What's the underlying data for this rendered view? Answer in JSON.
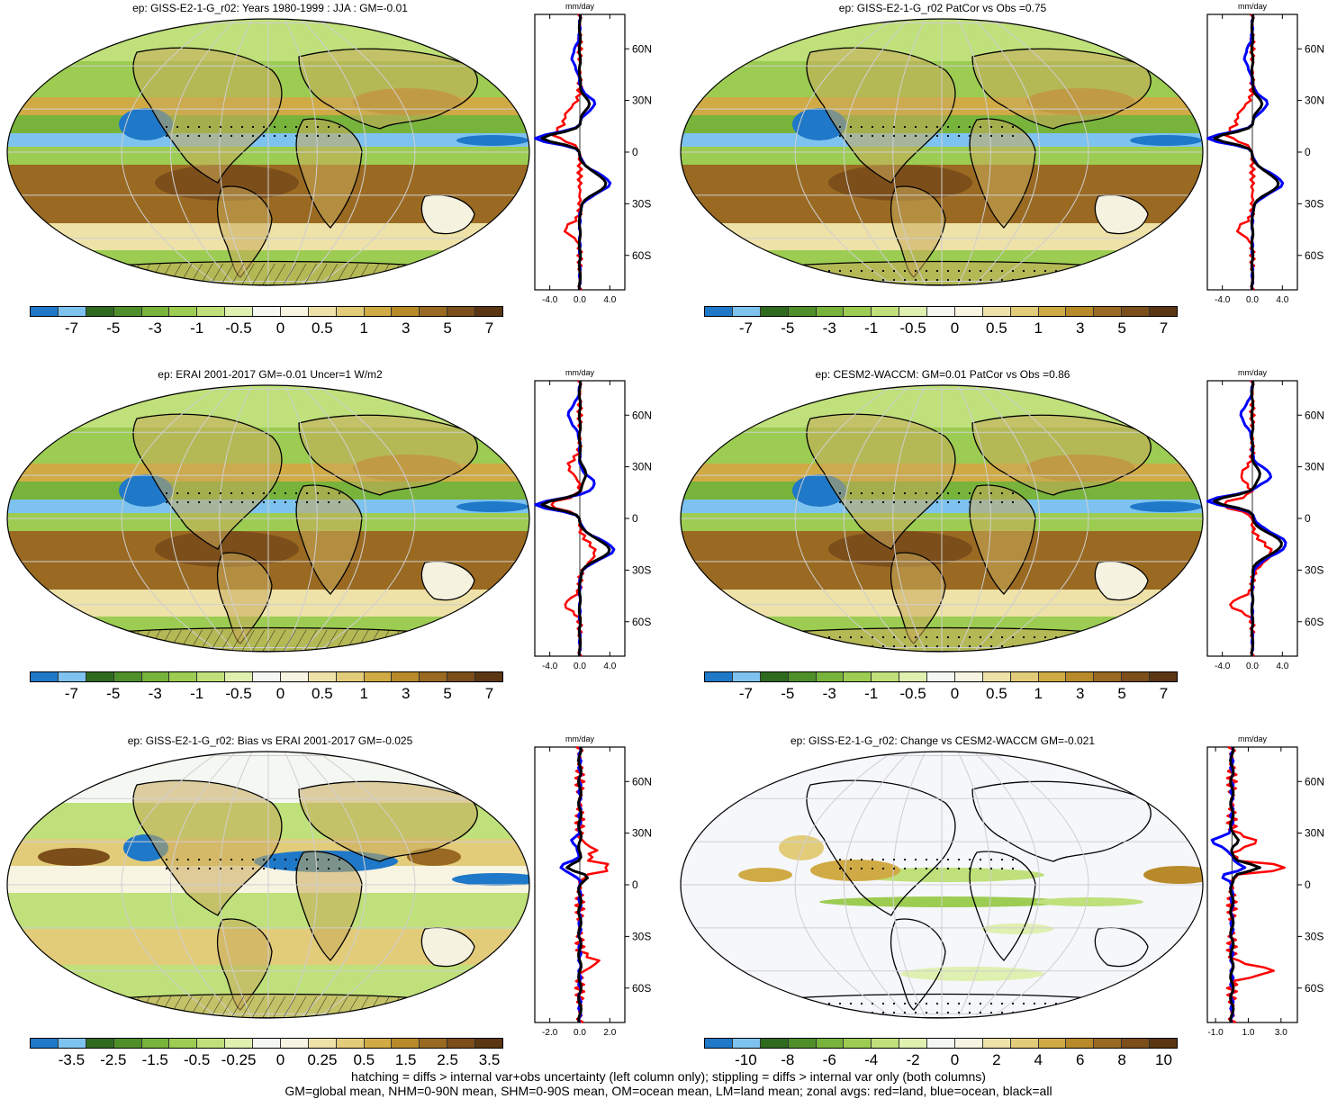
{
  "colors": {
    "scale": [
      "#1f78c8",
      "#7ec3f0",
      "#2e6b1e",
      "#4f8f2a",
      "#78b33c",
      "#9ccc52",
      "#bfe07a",
      "#dff0b0",
      "#f5f8f2",
      "#f8f4e2",
      "#eee2a8",
      "#e2cc7a",
      "#d0aa44",
      "#b88a2a",
      "#9a6a22",
      "#7c4e1a",
      "#5a3612"
    ],
    "land_curve": "#ff0000",
    "ocean_curve": "#0000ff",
    "all_curve": "#000000"
  },
  "zonal": {
    "unit": "mm/day",
    "lat_labels": [
      "60N",
      "30N",
      "0",
      "30S",
      "60S"
    ]
  },
  "panels": [
    {
      "title": "ep: GISS-E2-1-G_r02: Years 1980-1999 : JJA : GM=-0.01",
      "cbar_labels": [
        "-7",
        "-5",
        "-3",
        "-1",
        "-0.5",
        "0",
        "0.5",
        "1",
        "3",
        "5",
        "7"
      ],
      "zonal_ticks": [
        "-4.0",
        "0.0",
        "4.0"
      ],
      "map_type": "mean"
    },
    {
      "title": "ep: GISS-E2-1-G_r02 PatCor vs Obs =0.75",
      "cbar_labels": [
        "-7",
        "-5",
        "-3",
        "-1",
        "-0.5",
        "0",
        "0.5",
        "1",
        "3",
        "5",
        "7"
      ],
      "zonal_ticks": [
        "-4.0",
        "0.0",
        "4.0"
      ],
      "map_type": "mean"
    },
    {
      "title": "ep: ERAI 2001-2017 GM=-0.01 Uncer=1 W/m2",
      "cbar_labels": [
        "-7",
        "-5",
        "-3",
        "-1",
        "-0.5",
        "0",
        "0.5",
        "1",
        "3",
        "5",
        "7"
      ],
      "zonal_ticks": [
        "-4.0",
        "0.0",
        "4.0"
      ],
      "map_type": "mean"
    },
    {
      "title": "ep: CESM2-WACCM: GM=0.01 PatCor vs Obs =0.86",
      "cbar_labels": [
        "-7",
        "-5",
        "-3",
        "-1",
        "-0.5",
        "0",
        "0.5",
        "1",
        "3",
        "5",
        "7"
      ],
      "zonal_ticks": [
        "-4.0",
        "0.0",
        "4.0"
      ],
      "map_type": "mean"
    },
    {
      "title": "ep: GISS-E2-1-G_r02: Bias vs ERAI 2001-2017 GM=-0.025",
      "cbar_labels": [
        "-3.5",
        "-2.5",
        "-1.5",
        "-0.5",
        "-0.25",
        "0",
        "0.25",
        "0.5",
        "1.5",
        "2.5",
        "3.5"
      ],
      "zonal_ticks": [
        "-2.0",
        "0.0",
        "2.0"
      ],
      "map_type": "bias"
    },
    {
      "title": "ep: GISS-E2-1-G_r02: Change vs CESM2-WACCM GM=-0.021",
      "cbar_labels": [
        "-10",
        "-8",
        "-6",
        "-4",
        "-2",
        "0",
        "2",
        "4",
        "6",
        "8",
        "10"
      ],
      "zonal_ticks": [
        "-1.0",
        "1.0",
        "3.0"
      ],
      "map_type": "change"
    }
  ],
  "footer": {
    "line1": "hatching = diffs > internal var+obs uncertainty (left column only); stippling = diffs > internal var only (both columns)",
    "line2": "GM=global mean, NHM=0-90N mean, SHM=0-90S mean, OM=ocean mean, LM=land mean; zonal avgs: red=land, blue=ocean, black=all"
  }
}
